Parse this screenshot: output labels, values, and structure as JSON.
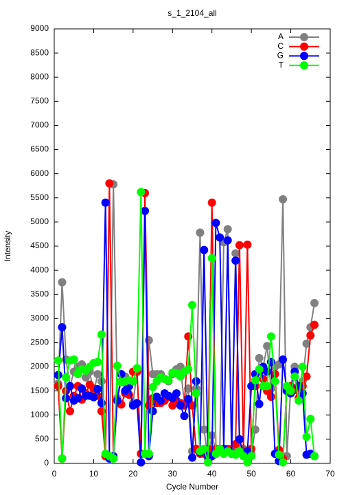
{
  "chart_data": {
    "type": "line",
    "title": "s_1_2104_all",
    "x_label": "Cycle Number",
    "y_label": "Intensity",
    "x": [
      1,
      2,
      3,
      4,
      5,
      6,
      7,
      8,
      9,
      10,
      11,
      12,
      13,
      14,
      15,
      16,
      17,
      18,
      19,
      20,
      21,
      22,
      23,
      24,
      25,
      26,
      27,
      28,
      29,
      30,
      31,
      32,
      33,
      34,
      35,
      36,
      37,
      38,
      39,
      40,
      41,
      42,
      43,
      44,
      45,
      46,
      47,
      48,
      49,
      50,
      51,
      52,
      53,
      54,
      55,
      56,
      57,
      58,
      59,
      60,
      61,
      62,
      63,
      64,
      65,
      66
    ],
    "series": [
      {
        "name": "A",
        "color": "#808080",
        "values": [
          1650,
          3750,
          2150,
          1600,
          1900,
          2000,
          2050,
          1780,
          1900,
          1450,
          1850,
          1700,
          150,
          150,
          5780,
          1350,
          1700,
          1800,
          1700,
          1250,
          1900,
          200,
          200,
          2550,
          1850,
          1850,
          1850,
          1750,
          1700,
          1850,
          1950,
          2000,
          1250,
          1550,
          250,
          1550,
          4780,
          700,
          100,
          580,
          250,
          300,
          4580,
          4850,
          300,
          4350,
          300,
          300,
          250,
          200,
          700,
          2180,
          2000,
          2430,
          1550,
          2000,
          2050,
          5470,
          150,
          1600,
          2000,
          1500,
          1700,
          2480,
          2820,
          3320
        ]
      },
      {
        "name": "C",
        "color": "#ff0000",
        "values": [
          1600,
          100,
          1500,
          1080,
          1400,
          1600,
          1320,
          1450,
          1630,
          1550,
          1400,
          1080,
          150,
          5800,
          150,
          1300,
          1220,
          1450,
          1420,
          1900,
          1900,
          200,
          5600,
          1200,
          1350,
          1250,
          1250,
          1300,
          1380,
          1200,
          1300,
          1250,
          1200,
          2630,
          1200,
          300,
          200,
          200,
          300,
          5400,
          300,
          300,
          250,
          300,
          200,
          400,
          4520,
          250,
          4530,
          300,
          1600,
          1900,
          1750,
          1500,
          1380,
          1850,
          280,
          100,
          1550,
          1600,
          1520,
          1350,
          1600,
          1800,
          2650,
          2870
        ]
      },
      {
        "name": "G",
        "color": "#0000ff",
        "values": [
          1830,
          2820,
          1350,
          1600,
          1300,
          1350,
          1550,
          1400,
          1400,
          1370,
          1540,
          1250,
          5400,
          100,
          150,
          1300,
          1850,
          1500,
          1600,
          1200,
          1250,
          20,
          5230,
          150,
          1080,
          1380,
          1300,
          1450,
          1400,
          1350,
          1450,
          1200,
          980,
          1330,
          120,
          1700,
          230,
          4420,
          150,
          150,
          4980,
          4680,
          300,
          4620,
          200,
          4200,
          500,
          200,
          250,
          1600,
          1850,
          1230,
          2000,
          1900,
          2100,
          200,
          50,
          2150,
          1500,
          1450,
          1900,
          1600,
          1450,
          180,
          200,
          150
        ]
      },
      {
        "name": "T",
        "color": "#00ff00",
        "values": [
          2130,
          100,
          1780,
          2130,
          2150,
          1850,
          1950,
          1920,
          2000,
          2080,
          2100,
          2670,
          200,
          150,
          100,
          2020,
          1680,
          1700,
          1720,
          1700,
          1970,
          5620,
          200,
          200,
          1580,
          1700,
          1780,
          1750,
          1720,
          1880,
          1870,
          1800,
          1900,
          1950,
          3280,
          1450,
          250,
          300,
          20,
          4250,
          200,
          300,
          200,
          250,
          200,
          180,
          250,
          150,
          20,
          150,
          1720,
          1950,
          1600,
          1600,
          2630,
          1700,
          180,
          20,
          1600,
          1500,
          1800,
          1300,
          2000,
          550,
          920,
          150
        ]
      }
    ],
    "xlim": [
      0,
      70
    ],
    "xticks": [
      0,
      10,
      20,
      30,
      40,
      50,
      60,
      70
    ],
    "ylim": [
      0,
      9000
    ],
    "yticks": [
      0,
      500,
      1000,
      1500,
      2000,
      2500,
      3000,
      3500,
      4000,
      4500,
      5000,
      5500,
      6000,
      6500,
      7000,
      7500,
      8000,
      8500,
      9000
    ],
    "grid": false,
    "legend": "top-right"
  }
}
